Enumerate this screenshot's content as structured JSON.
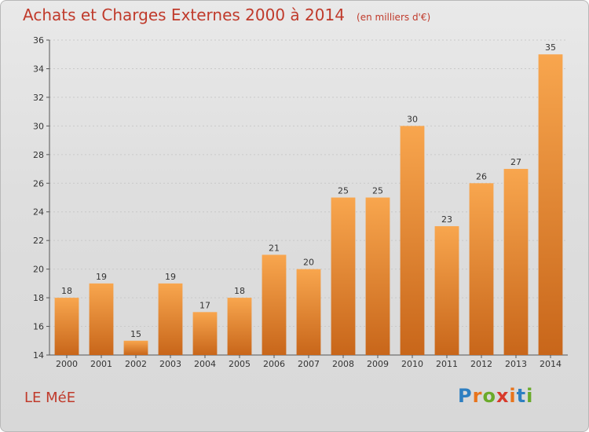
{
  "header": {
    "title": "Achats et Charges Externes 2000 à 2014",
    "unit": "(en milliers d'€)"
  },
  "footer": {
    "place": "LE MéE",
    "brand": [
      "P",
      "r",
      "o",
      "x",
      "i",
      "t",
      "i"
    ],
    "brand_colors": [
      "#2e7fc1",
      "#e8741c",
      "#6aaa2a",
      "#d83a2b",
      "#e8741c",
      "#2e7fc1",
      "#6aaa2a"
    ]
  },
  "chart_data": {
    "type": "bar",
    "title": "Achats et Charges Externes 2000 à 2014",
    "subtitle": "(en milliers d'€)",
    "categories": [
      "2000",
      "2001",
      "2002",
      "2003",
      "2004",
      "2005",
      "2006",
      "2007",
      "2008",
      "2009",
      "2010",
      "2011",
      "2012",
      "2013",
      "2014"
    ],
    "values": [
      18,
      19,
      15,
      19,
      17,
      18,
      21,
      20,
      25,
      25,
      30,
      23,
      26,
      27,
      35
    ],
    "xlabel": "",
    "ylabel": "",
    "ylim": [
      14,
      36
    ],
    "yticks": [
      14,
      16,
      18,
      20,
      22,
      24,
      26,
      28,
      30,
      32,
      34,
      36
    ],
    "grid": true,
    "legend": "none",
    "bar_color_top": "#f8a64e",
    "bar_color_bottom": "#c8661a"
  }
}
